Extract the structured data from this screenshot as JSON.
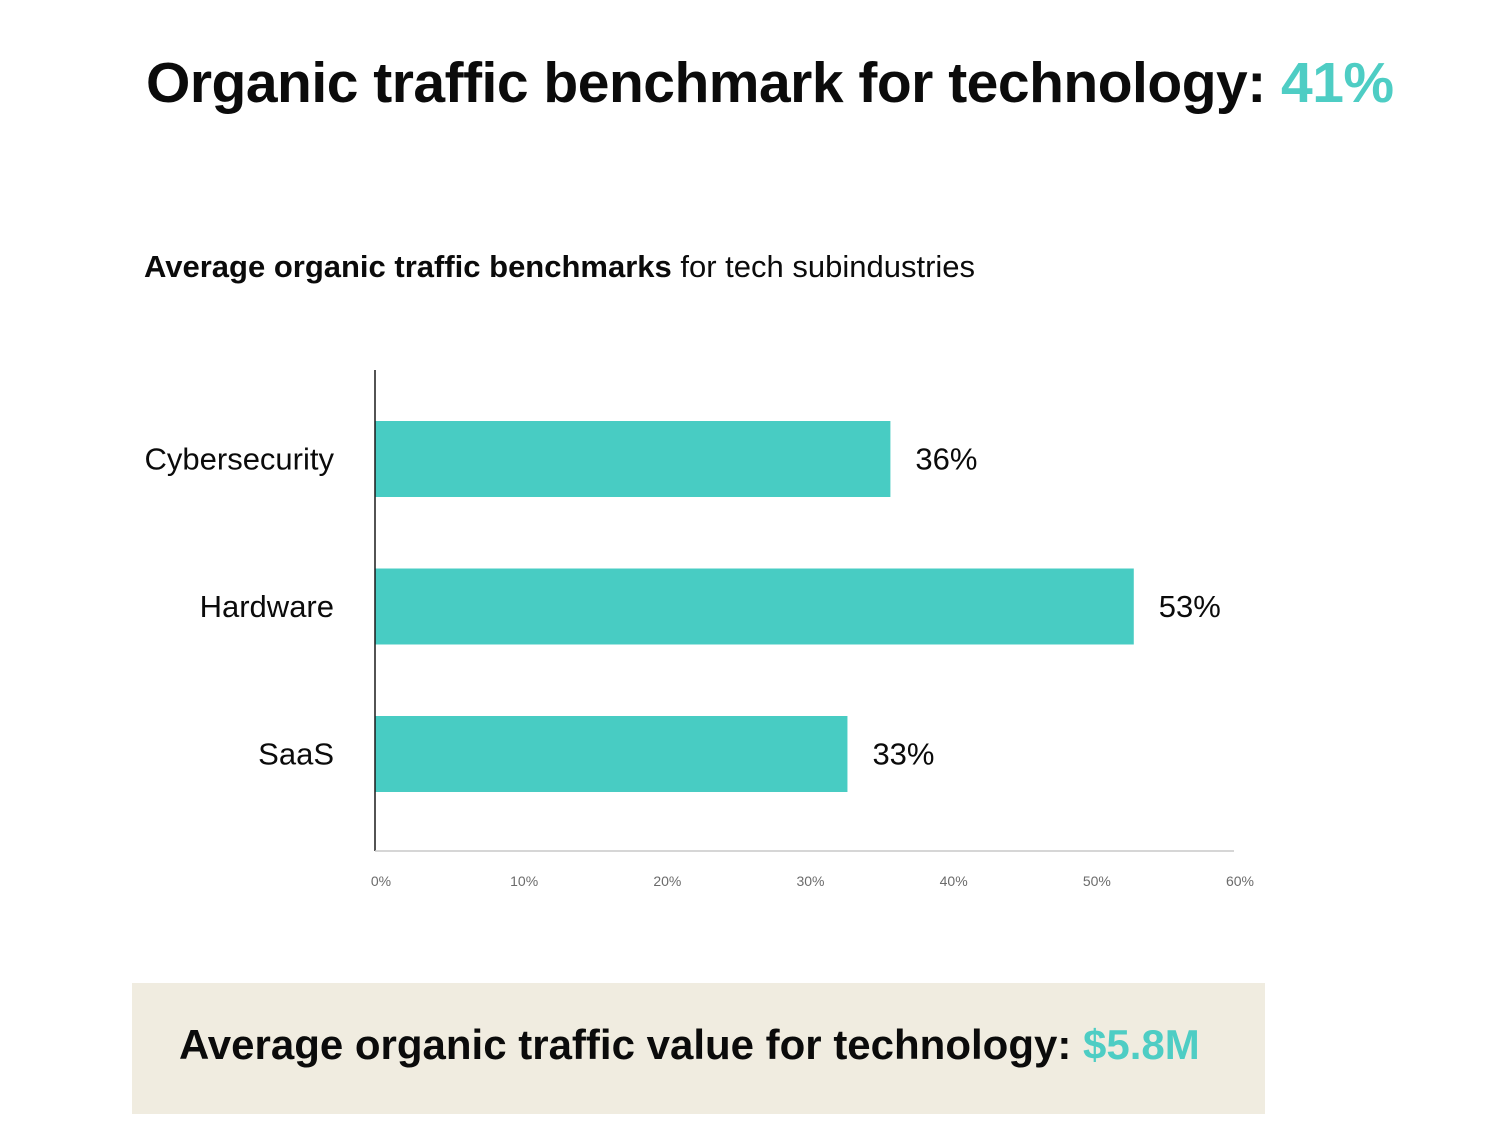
{
  "headline": {
    "text": "Organic traffic benchmark for technology: ",
    "value": "41%"
  },
  "subtitle": {
    "bold": "Average organic traffic benchmarks",
    "regular": " for tech subindustries"
  },
  "colors": {
    "accent": "#4ecdc4",
    "bar": "#48ccc3",
    "box_bg": "#f0ece0",
    "text": "#0b0b0b",
    "tick_text": "#6b6b6b"
  },
  "chart_data": {
    "type": "bar",
    "orientation": "horizontal",
    "categories": [
      "Cybersecurity",
      "Hardware",
      "SaaS"
    ],
    "values": [
      36,
      53,
      33
    ],
    "value_labels": [
      "36%",
      "53%",
      "33%"
    ],
    "xlim": [
      0,
      60
    ],
    "xticks": [
      0,
      10,
      20,
      30,
      40,
      50,
      60
    ],
    "xtick_labels": [
      "0%",
      "10%",
      "20%",
      "30%",
      "40%",
      "50%",
      "60%"
    ],
    "grid": false
  },
  "footer": {
    "text": "Average organic traffic value for technology: ",
    "value": "$5.8M"
  }
}
